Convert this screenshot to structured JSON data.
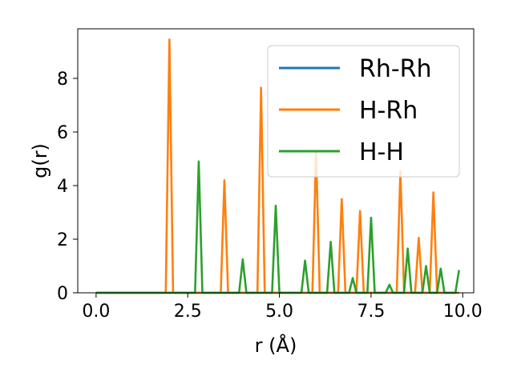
{
  "chart_data": {
    "type": "line",
    "xlabel": "r (Å)",
    "ylabel": "g(r)",
    "xlim": [
      -0.5,
      10.3
    ],
    "ylim": [
      0,
      9.85
    ],
    "xticks": [
      0.0,
      2.5,
      5.0,
      7.5,
      10.0
    ],
    "xtick_labels": [
      "0.0",
      "2.5",
      "5.0",
      "7.5",
      "10.0"
    ],
    "yticks": [
      0,
      2,
      4,
      6,
      8
    ],
    "ytick_labels": [
      "0",
      "2",
      "4",
      "6",
      "8"
    ],
    "grid": false,
    "legend_position": "top-right",
    "series": [
      {
        "name": "Rh-Rh",
        "color": "#1f77b4",
        "points": [
          [
            0.0,
            0
          ],
          [
            9.9,
            0
          ]
        ]
      },
      {
        "name": "H-Rh",
        "color": "#ff7f0e",
        "points": [
          [
            0.0,
            0
          ],
          [
            1.9,
            0
          ],
          [
            2.0,
            9.45
          ],
          [
            2.1,
            0
          ],
          [
            3.4,
            0
          ],
          [
            3.5,
            4.2
          ],
          [
            3.6,
            0
          ],
          [
            4.4,
            0
          ],
          [
            4.5,
            7.65
          ],
          [
            4.6,
            0
          ],
          [
            5.9,
            0
          ],
          [
            6.0,
            5.3
          ],
          [
            6.1,
            0
          ],
          [
            6.6,
            0
          ],
          [
            6.7,
            3.5
          ],
          [
            6.8,
            0
          ],
          [
            7.1,
            0
          ],
          [
            7.2,
            3.05
          ],
          [
            7.3,
            0
          ],
          [
            8.2,
            0
          ],
          [
            8.3,
            4.55
          ],
          [
            8.4,
            0
          ],
          [
            8.7,
            0
          ],
          [
            8.8,
            2.05
          ],
          [
            8.9,
            0
          ],
          [
            9.1,
            0
          ],
          [
            9.2,
            3.75
          ],
          [
            9.3,
            0
          ],
          [
            9.9,
            0
          ]
        ]
      },
      {
        "name": "H-H",
        "color": "#2ca02c",
        "points": [
          [
            0.0,
            0
          ],
          [
            2.7,
            0
          ],
          [
            2.8,
            4.9
          ],
          [
            2.9,
            0
          ],
          [
            3.9,
            0
          ],
          [
            4.0,
            1.25
          ],
          [
            4.1,
            0
          ],
          [
            4.8,
            0
          ],
          [
            4.9,
            3.25
          ],
          [
            5.0,
            0
          ],
          [
            5.6,
            0
          ],
          [
            5.7,
            1.2
          ],
          [
            5.8,
            0
          ],
          [
            6.3,
            0
          ],
          [
            6.4,
            1.9
          ],
          [
            6.5,
            0
          ],
          [
            6.9,
            0
          ],
          [
            7.0,
            0.55
          ],
          [
            7.1,
            0
          ],
          [
            7.4,
            0
          ],
          [
            7.5,
            2.8
          ],
          [
            7.6,
            0
          ],
          [
            7.9,
            0
          ],
          [
            8.0,
            0.3
          ],
          [
            8.1,
            0
          ],
          [
            8.4,
            0
          ],
          [
            8.5,
            1.65
          ],
          [
            8.6,
            0
          ],
          [
            8.9,
            0
          ],
          [
            9.0,
            1.0
          ],
          [
            9.1,
            0
          ],
          [
            9.3,
            0
          ],
          [
            9.4,
            0.9
          ],
          [
            9.5,
            0
          ],
          [
            9.8,
            0
          ],
          [
            9.9,
            0.85
          ]
        ]
      }
    ]
  }
}
